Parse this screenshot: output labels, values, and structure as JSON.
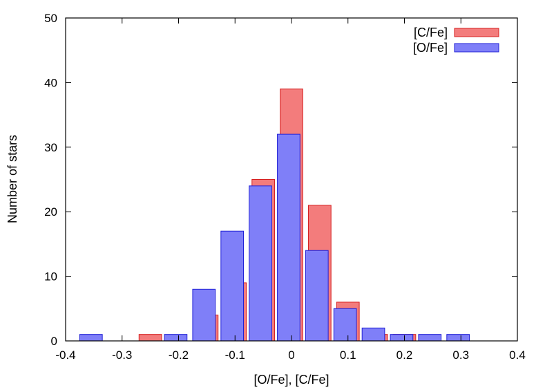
{
  "chart_data": {
    "type": "bar",
    "title": "",
    "xlabel": "[O/Fe], [C/Fe]",
    "ylabel": "Number of stars",
    "xlim": [
      -0.4,
      0.4
    ],
    "ylim": [
      0,
      50
    ],
    "xticks": [
      "-0.4",
      "-0.3",
      "-0.2",
      "-0.1",
      "0",
      "0.1",
      "0.2",
      "0.3",
      "0.4"
    ],
    "yticks": [
      "0",
      "10",
      "20",
      "30",
      "40",
      "50"
    ],
    "grid": false,
    "legend_position": "top-right",
    "series": [
      {
        "name": "[C/Fe]",
        "color": "#f37c7c",
        "stroke": "#d62020",
        "bin_width": 0.04,
        "x": [
          -0.25,
          -0.15,
          -0.1,
          -0.05,
          0.0,
          0.05,
          0.1,
          0.15,
          0.2
        ],
        "values": [
          1,
          4,
          9,
          25,
          39,
          21,
          6,
          1,
          1
        ]
      },
      {
        "name": "[O/Fe]",
        "color": "#7f7ff8",
        "stroke": "#2020d6",
        "bin_width": 0.04,
        "x": [
          -0.355,
          -0.205,
          -0.155,
          -0.105,
          -0.055,
          -0.005,
          0.045,
          0.095,
          0.145,
          0.195,
          0.245,
          0.295
        ],
        "values": [
          1,
          1,
          8,
          17,
          24,
          32,
          14,
          5,
          2,
          1,
          1,
          1
        ]
      }
    ]
  }
}
